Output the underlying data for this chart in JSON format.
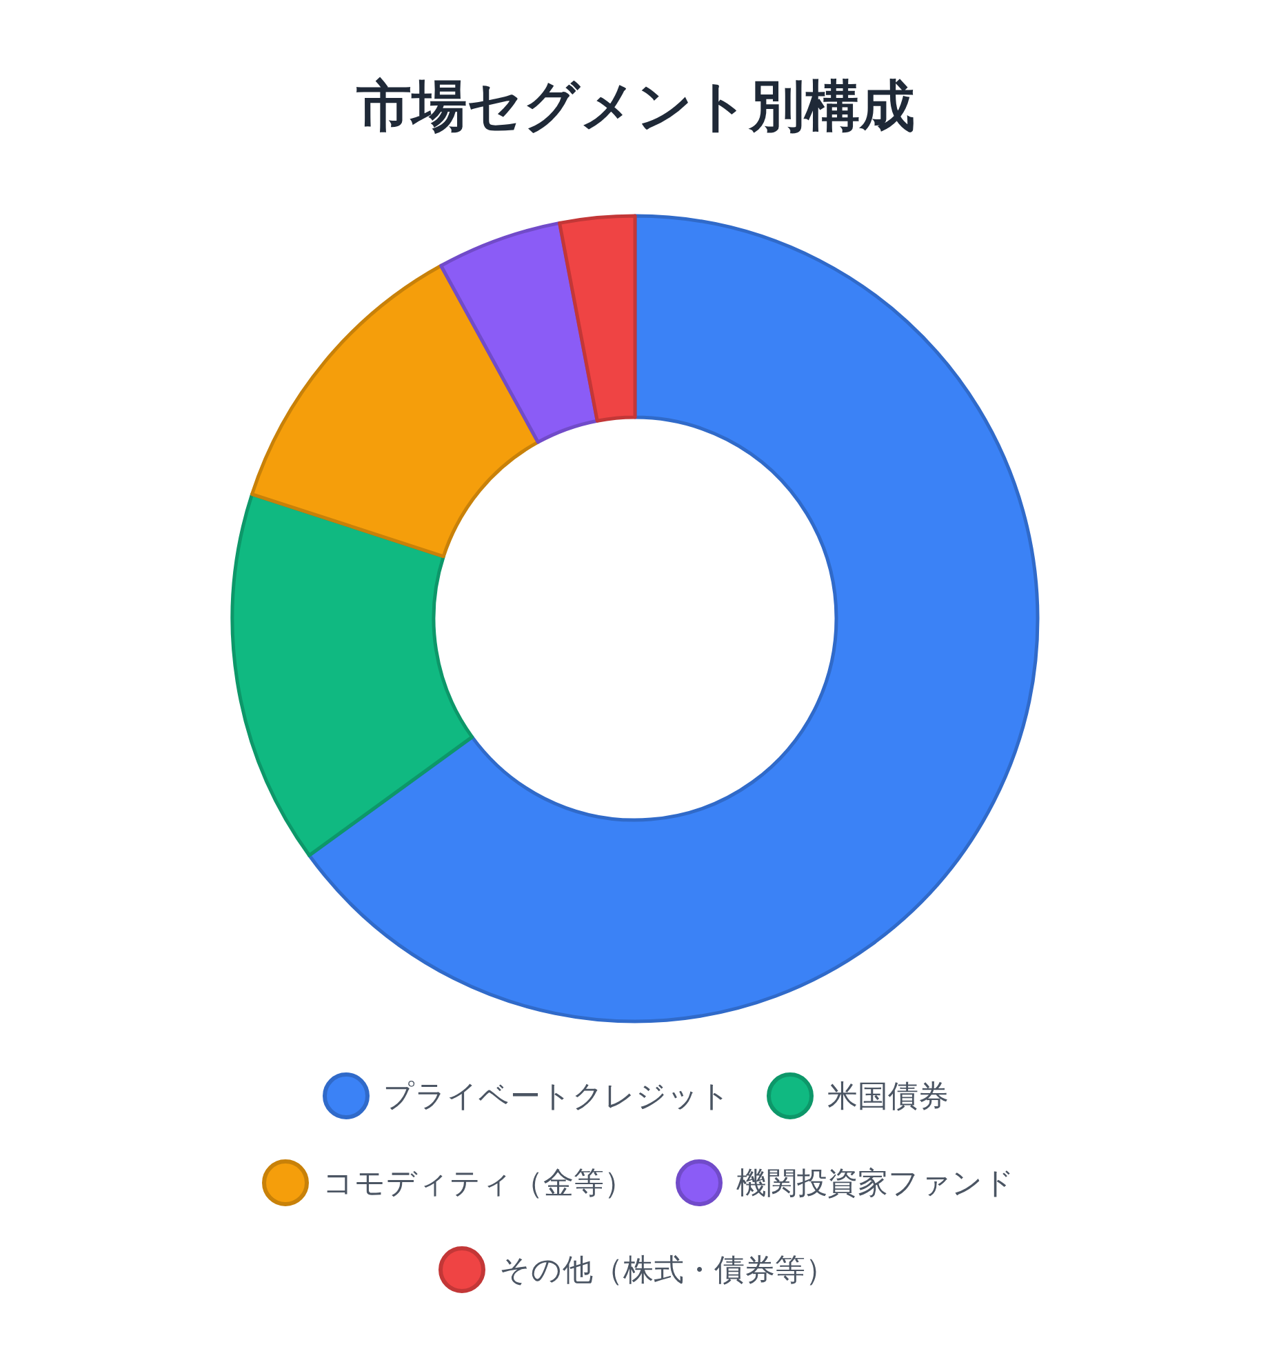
{
  "chart_data": {
    "type": "donut",
    "title": "市場セグメント別構成",
    "categories": [
      "プライベートクレジット",
      "米国債券",
      "コモディティ（金等）",
      "機関投資家ファンド",
      "その他（株式・債券等）"
    ],
    "values": [
      65,
      15,
      12,
      5,
      3
    ],
    "colors": [
      "#3b82f6",
      "#10b981",
      "#f59e0b",
      "#8b5cf6",
      "#ef4444"
    ],
    "legend": "bottom"
  }
}
